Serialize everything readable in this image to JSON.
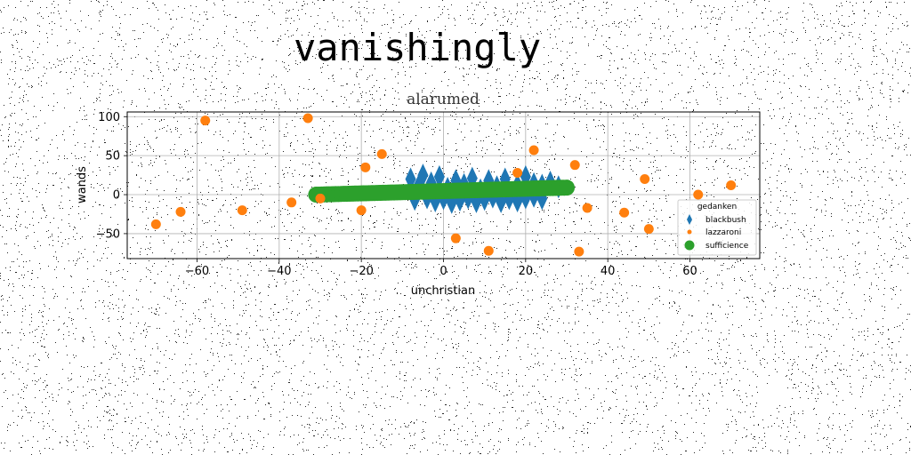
{
  "page": {
    "title": "vanishingly"
  },
  "chart_data": {
    "type": "scatter",
    "title": "alarumed",
    "xlabel": "unchristian",
    "ylabel": "wands",
    "xlim": [
      -77,
      77
    ],
    "ylim": [
      -82,
      106
    ],
    "xticks": [
      -60,
      -40,
      -20,
      0,
      20,
      40,
      60
    ],
    "yticks": [
      -50,
      0,
      50,
      100
    ],
    "grid": true,
    "legend": {
      "title": "gedanken",
      "position": "center-right"
    },
    "series": [
      {
        "name": "blackbush",
        "marker": "thin_diamond",
        "color": "#1f77b4",
        "points": [
          [
            -8,
            20
          ],
          [
            -6,
            12
          ],
          [
            -5,
            25
          ],
          [
            -3,
            15
          ],
          [
            -1,
            23
          ],
          [
            1,
            8
          ],
          [
            3,
            18
          ],
          [
            5,
            13
          ],
          [
            7,
            21
          ],
          [
            9,
            6
          ],
          [
            11,
            18
          ],
          [
            13,
            10
          ],
          [
            15,
            20
          ],
          [
            18,
            12
          ],
          [
            20,
            23
          ],
          [
            22,
            14
          ],
          [
            24,
            12
          ],
          [
            26,
            16
          ],
          [
            28,
            10
          ],
          [
            -7,
            -6
          ],
          [
            -4,
            -4
          ],
          [
            -2,
            -8
          ],
          [
            0,
            -5
          ],
          [
            2,
            -10
          ],
          [
            4,
            -7
          ],
          [
            6,
            -4
          ],
          [
            8,
            -9
          ],
          [
            10,
            -6
          ],
          [
            12,
            -3
          ],
          [
            14,
            -9
          ],
          [
            16,
            -5
          ],
          [
            18,
            -8
          ],
          [
            20,
            -4
          ],
          [
            22,
            -2
          ],
          [
            24,
            -5
          ]
        ]
      },
      {
        "name": "lazzaroni",
        "marker": "circle",
        "color": "#ff7f0e",
        "points": [
          [
            -58,
            95
          ],
          [
            -33,
            98
          ],
          [
            -70,
            -38
          ],
          [
            -64,
            -22
          ],
          [
            -49,
            -20
          ],
          [
            -37,
            -10
          ],
          [
            -30,
            -5
          ],
          [
            -20,
            -20
          ],
          [
            -19,
            35
          ],
          [
            -15,
            52
          ],
          [
            3,
            -56
          ],
          [
            11,
            -72
          ],
          [
            18,
            28
          ],
          [
            22,
            57
          ],
          [
            32,
            38
          ],
          [
            33,
            -73
          ],
          [
            35,
            -17
          ],
          [
            44,
            -23
          ],
          [
            49,
            20
          ],
          [
            50,
            -44
          ],
          [
            62,
            0
          ],
          [
            70,
            12
          ]
        ]
      },
      {
        "name": "sufficience",
        "marker": "circle",
        "color": "#2ca02c",
        "line": {
          "x": [
            -31,
            30
          ],
          "y": [
            0,
            9
          ]
        }
      }
    ]
  }
}
